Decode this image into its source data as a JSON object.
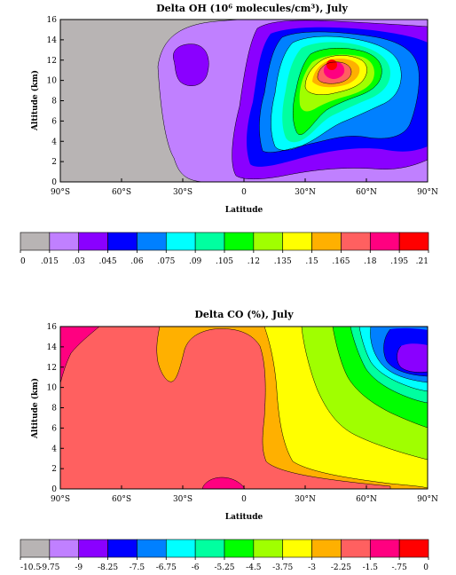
{
  "chart_data": [
    {
      "type": "heatmap",
      "title": "Delta OH (10⁶ molecules/cm³), July",
      "xlabel": "Latitude",
      "ylabel": "Altitude (km)",
      "x_ticks": [
        "90°S",
        "60°S",
        "30°S",
        "0",
        "30°N",
        "60°N",
        "90°N"
      ],
      "x_values": [
        -90,
        -60,
        -30,
        0,
        30,
        60,
        90
      ],
      "y_ticks": [
        "0",
        "2",
        "4",
        "6",
        "8",
        "10",
        "12",
        "14",
        "16"
      ],
      "y_values": [
        0,
        2,
        4,
        6,
        8,
        10,
        12,
        14,
        16
      ],
      "xlim": [
        -90,
        90
      ],
      "ylim": [
        0,
        16
      ],
      "levels": [
        "0",
        ".015",
        ".03",
        ".045",
        ".06",
        ".075",
        ".09",
        ".105",
        ".12",
        ".135",
        ".15",
        ".165",
        ".18",
        ".195",
        ".21"
      ],
      "colors": [
        "#b8b4b4",
        "#c080ff",
        "#8a00ff",
        "#0000ff",
        "#0080ff",
        "#00ffff",
        "#00ffa0",
        "#00ff00",
        "#a0ff00",
        "#ffff00",
        "#ffb000",
        "#ff6060",
        "#ff0080",
        "#ff0000"
      ],
      "peak": {
        "lat": 43,
        "alt": 11.5,
        "value_range": [
          ".195",
          ".21"
        ]
      }
    },
    {
      "type": "heatmap",
      "title": "Delta CO (%), July",
      "xlabel": "Latitude",
      "ylabel": "Altitude (km)",
      "x_ticks": [
        "90°S",
        "60°S",
        "30°S",
        "0",
        "30°N",
        "60°N",
        "90°N"
      ],
      "x_values": [
        -90,
        -60,
        -30,
        0,
        30,
        60,
        90
      ],
      "y_ticks": [
        "0",
        "2",
        "4",
        "6",
        "8",
        "10",
        "12",
        "14",
        "16"
      ],
      "y_values": [
        0,
        2,
        4,
        6,
        8,
        10,
        12,
        14,
        16
      ],
      "xlim": [
        -90,
        90
      ],
      "ylim": [
        0,
        16
      ],
      "levels": [
        "-10.5",
        "-9.75",
        "-9",
        "-8.25",
        "-7.5",
        "-6.75",
        "-6",
        "-5.25",
        "-4.5",
        "-3.75",
        "-3",
        "-2.25",
        "-1.5",
        "-.75",
        "0"
      ],
      "colors": [
        "#b8b4b4",
        "#c080ff",
        "#8a00ff",
        "#0000ff",
        "#0080ff",
        "#00ffff",
        "#00ffa0",
        "#00ff00",
        "#a0ff00",
        "#ffff00",
        "#ffb000",
        "#ff6060",
        "#ff0080",
        "#ff0000"
      ],
      "minimum": {
        "lat": 85,
        "alt": 12.5,
        "value_range": [
          "-8.25",
          "-7.5"
        ]
      }
    }
  ]
}
